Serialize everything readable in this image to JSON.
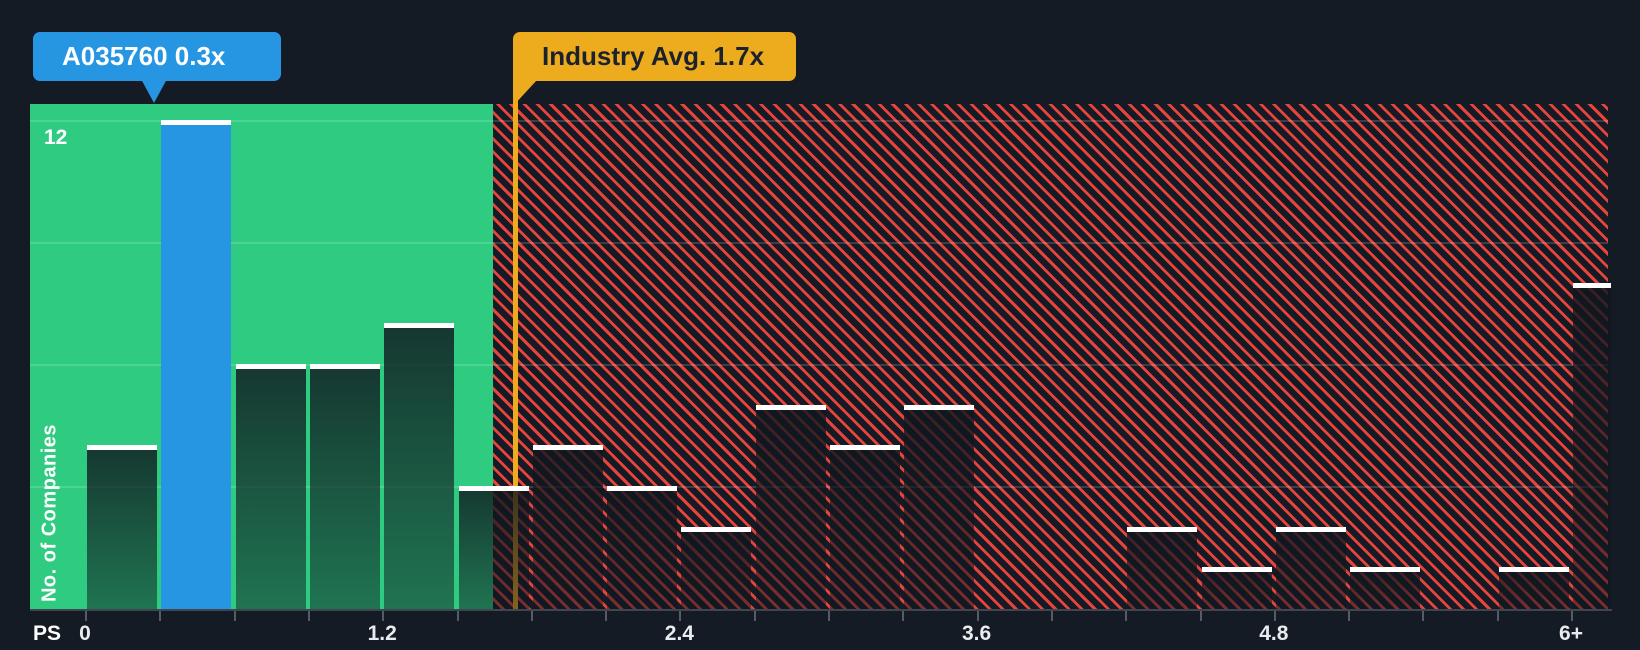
{
  "colors": {
    "background": "#151B24",
    "below_avg_zone_green": "#2ECB81",
    "above_avg_hatch_red": "#E5433C",
    "company_blue": "#2696E3",
    "industry_yellow": "#EDAB1E"
  },
  "chart_data": {
    "type": "bar",
    "ylabel": "No. of Companies",
    "y_max_label": "12",
    "ylim": [
      0,
      12.4
    ],
    "gridline_values": [
      3,
      6,
      9,
      12
    ],
    "x_axis_prefix": "PS",
    "bin_width": 0.3,
    "x_ticks": [
      {
        "label": "0",
        "value": 0
      },
      {
        "label": "1.2",
        "value": 1.2
      },
      {
        "label": "2.4",
        "value": 2.4
      },
      {
        "label": "3.6",
        "value": 3.6
      },
      {
        "label": "4.8",
        "value": 4.8
      },
      {
        "label": "6+",
        "value": 6
      }
    ],
    "bars": [
      {
        "bin": "0.0-0.3",
        "value": 4
      },
      {
        "bin": "0.3-0.6",
        "value": 12,
        "highlight": true
      },
      {
        "bin": "0.6-0.9",
        "value": 6
      },
      {
        "bin": "0.9-1.2",
        "value": 6
      },
      {
        "bin": "1.2-1.5",
        "value": 7
      },
      {
        "bin": "1.5-1.8",
        "value": 3
      },
      {
        "bin": "1.8-2.1",
        "value": 4
      },
      {
        "bin": "2.1-2.4",
        "value": 3
      },
      {
        "bin": "2.4-2.7",
        "value": 2
      },
      {
        "bin": "2.7-3.0",
        "value": 5
      },
      {
        "bin": "3.0-3.3",
        "value": 4
      },
      {
        "bin": "3.3-3.6",
        "value": 5
      },
      {
        "bin": "3.6-3.9",
        "value": 0
      },
      {
        "bin": "3.9-4.2",
        "value": 0
      },
      {
        "bin": "4.2-4.5",
        "value": 2
      },
      {
        "bin": "4.5-4.8",
        "value": 1
      },
      {
        "bin": "4.8-5.1",
        "value": 2
      },
      {
        "bin": "5.1-5.4",
        "value": 1
      },
      {
        "bin": "5.4-5.7",
        "value": 0
      },
      {
        "bin": "5.7-6.0",
        "value": 1
      },
      {
        "bin": "6.0+",
        "value": 8,
        "plus": true
      }
    ],
    "company_marker": {
      "label": "A035760 0.3x",
      "x": 0.3
    },
    "industry_marker": {
      "label": "Industry Avg. 1.7x",
      "x": 1.7
    },
    "legend": "none",
    "grid": "horizontal"
  }
}
